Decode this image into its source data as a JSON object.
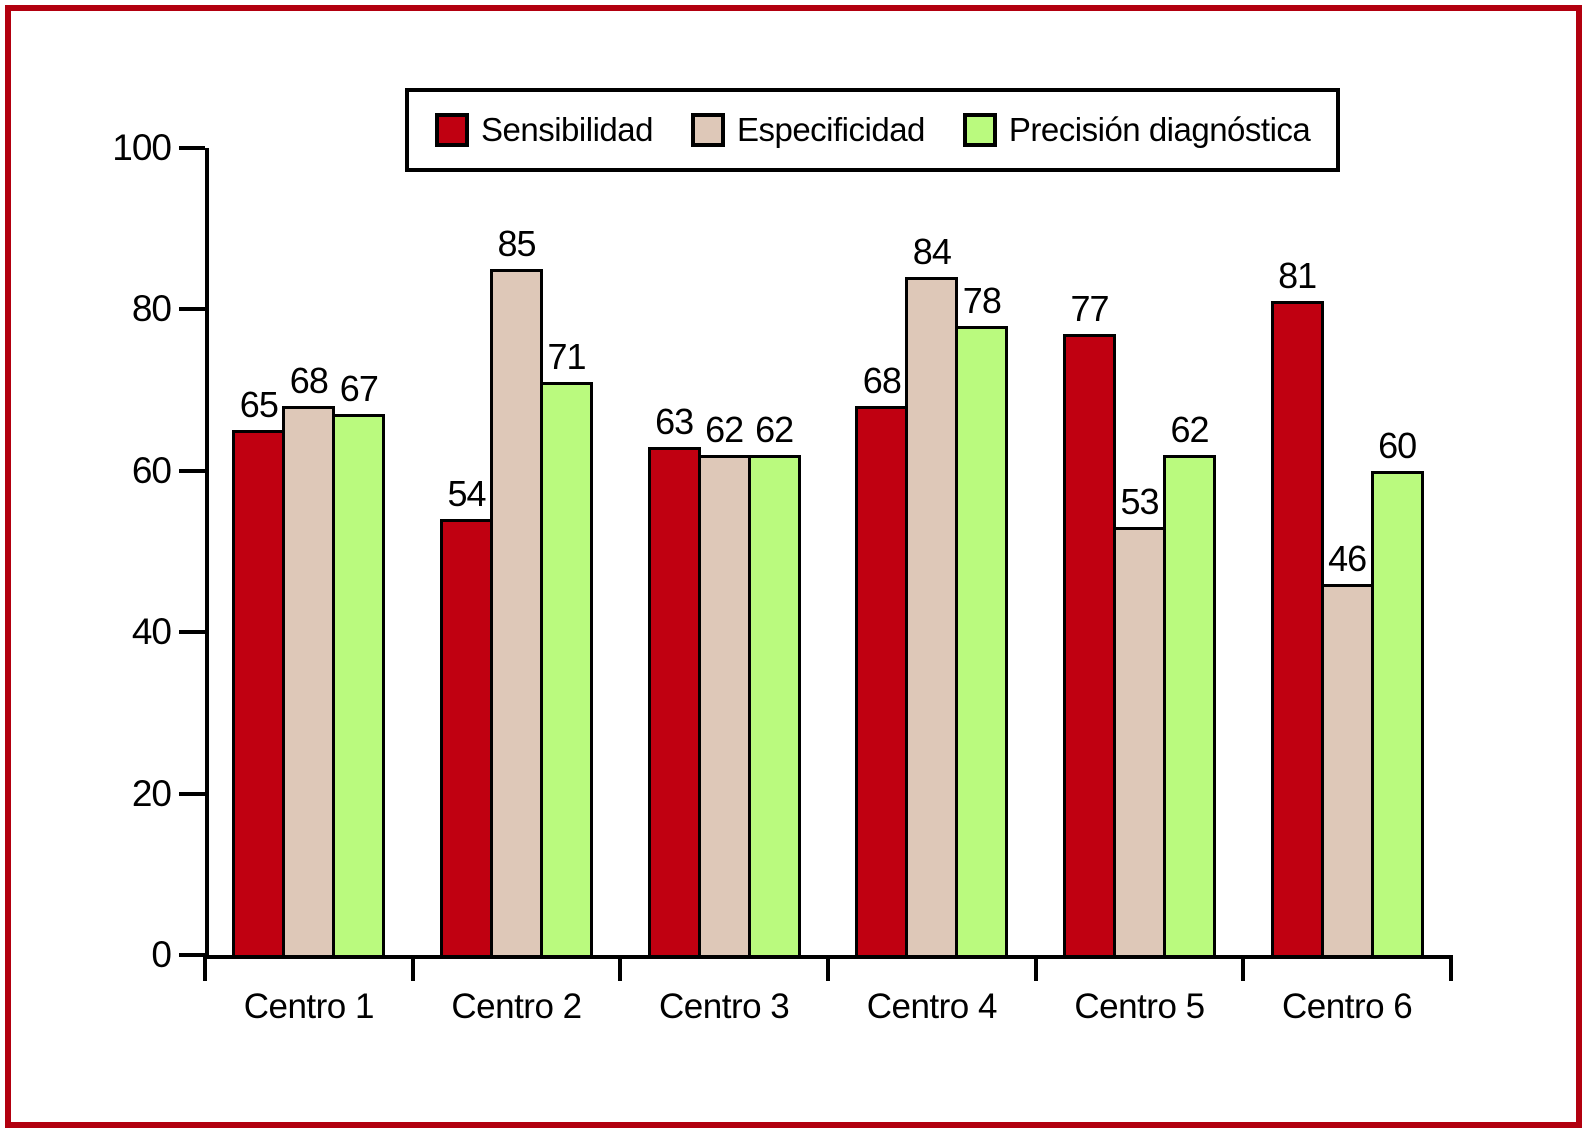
{
  "frame": {
    "border_color": "#B2000F",
    "background": "#FFFFFF"
  },
  "axis_color": "#000000",
  "chart_data": {
    "type": "bar",
    "title": "",
    "xlabel": "",
    "ylabel": "",
    "categories": [
      "Centro 1",
      "Centro 2",
      "Centro 3",
      "Centro 4",
      "Centro 5",
      "Centro 6"
    ],
    "series": [
      {
        "name": "Sensibilidad",
        "color": "#C00011",
        "values": [
          65,
          54,
          63,
          68,
          77,
          81
        ]
      },
      {
        "name": "Especificidad",
        "color": "#DEC8B8",
        "values": [
          68,
          85,
          62,
          84,
          53,
          46
        ]
      },
      {
        "name": "Precisión diagnóstica",
        "color": "#BAFA7E",
        "values": [
          67,
          71,
          62,
          78,
          62,
          60
        ]
      }
    ],
    "ylim": [
      0,
      100
    ],
    "y_ticks": [
      0,
      20,
      40,
      60,
      80,
      100
    ],
    "grid": false,
    "legend_position": "top",
    "bar_value_labels_shown": true
  }
}
